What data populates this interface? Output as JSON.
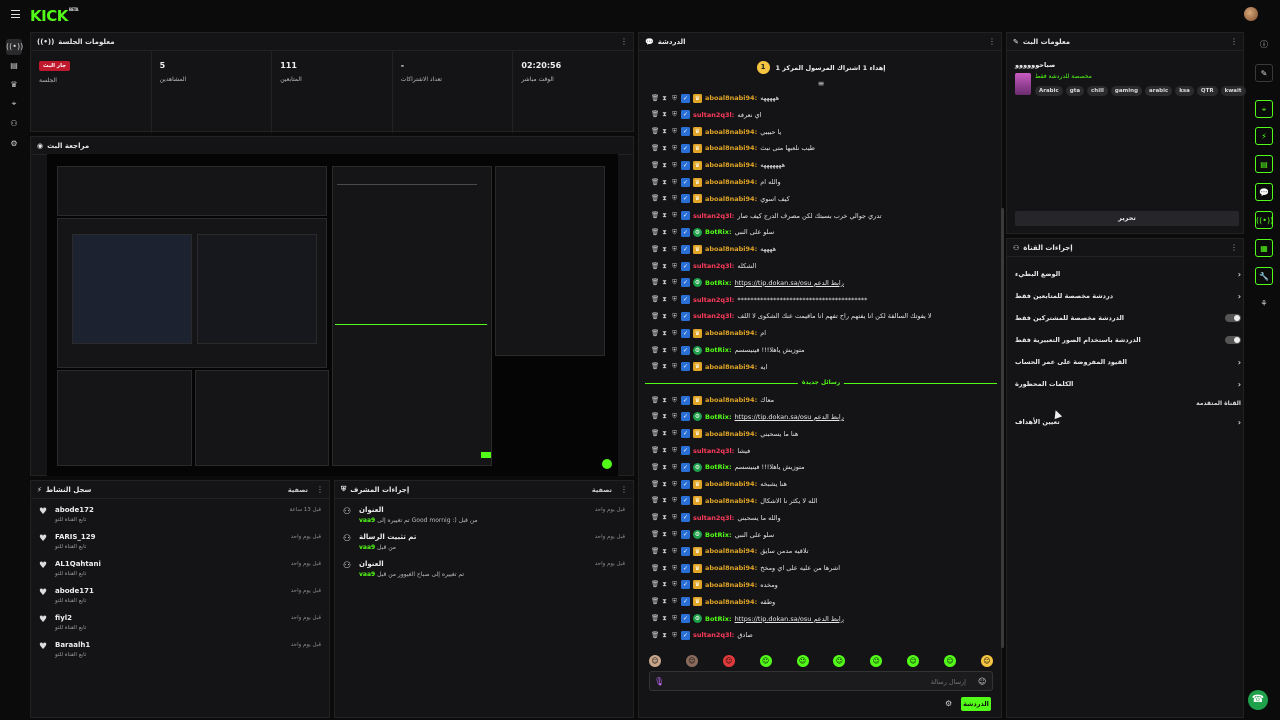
{
  "header": {
    "logo": "KICK",
    "logo_sup": "BETA"
  },
  "colors": {
    "brand": "#53fc18",
    "live": "#c0182c",
    "panel": "#141416"
  },
  "session": {
    "title": "معلومات الجلسة",
    "live_badge": "جار البث",
    "session_label": "الجلسة",
    "viewers_value": "5",
    "viewers_label": "المشاهدين",
    "followers_value": "111",
    "followers_label": "المتابعين",
    "subs_value": "-",
    "subs_label": "تعداد الاشتراكات",
    "time_value": "02:20:56",
    "time_label": "الوقت مباشر"
  },
  "preview": {
    "title": "مراجعة البث"
  },
  "activity": {
    "title": "سجل النشاط",
    "filter": "تصفية",
    "items": [
      {
        "name": "abode172",
        "sub": "تابع القناة للتو",
        "time": "قبل 13 ساعة"
      },
      {
        "name": "FARIS_129",
        "sub": "تابع القناة للتو",
        "time": "قبل يوم واحد"
      },
      {
        "name": "AL1Qahtani",
        "sub": "تابع القناة للتو",
        "time": "قبل يوم واحد"
      },
      {
        "name": "abode171",
        "sub": "تابع القناة للتو",
        "time": "قبل يوم واحد"
      },
      {
        "name": "fiyl2",
        "sub": "تابع القناة للتو",
        "time": "قبل يوم واحد"
      },
      {
        "name": "Baraalh1",
        "sub": "تابع القناة للتو",
        "time": "قبل يوم واحد"
      }
    ]
  },
  "mod": {
    "title": "إجراءات المشرف",
    "filter": "تصفية",
    "items": [
      {
        "name": "العنوان",
        "pre": "vaa9",
        "text": "تم تغييره إلى Good mornig :) من قبل",
        "time": "قبل يوم واحد"
      },
      {
        "name": "تم تثبيت الرسالة",
        "pre": "vaa9",
        "text": "من قبل",
        "time": "قبل يوم واحد"
      },
      {
        "name": "العنوان",
        "pre": "vaa9",
        "text": "تم تغييره إلى صباح الغيوور من قبل",
        "time": "قبل يوم واحد"
      }
    ]
  },
  "chat": {
    "title": "الدردشة",
    "pinned_num": "1",
    "pinned_text": "إهداء 1 اشتراك المرسول المركز 1",
    "messages": [
      {
        "user": "aboal8nabi94:",
        "text": "هههههه",
        "color": "#e0a526",
        "badge": "gold"
      },
      {
        "user": "sultan2q3l:",
        "text": "اي نعرفه",
        "color": "#ff3b5c",
        "badge": "none"
      },
      {
        "user": "aboal8nabi94:",
        "text": "يا حبيبي",
        "color": "#e0a526",
        "badge": "gold"
      },
      {
        "user": "aboal8nabi94:",
        "text": "طيب نلعبها متى نبث",
        "color": "#e0a526",
        "badge": "gold"
      },
      {
        "user": "aboal8nabi94:",
        "text": "هههههههه",
        "color": "#e0a526",
        "badge": "gold"
      },
      {
        "user": "aboal8nabi94:",
        "text": "والله ام",
        "color": "#e0a526",
        "badge": "gold"
      },
      {
        "user": "aboal8nabi94:",
        "text": "كيف اسوي",
        "color": "#e0a526",
        "badge": "gold"
      },
      {
        "user": "sultan2q3l:",
        "text": "تدري جوالي خرب بسبتك لكن مصرف الدرج كيف صار",
        "color": "#ff3b5c",
        "badge": "none"
      },
      {
        "user": "BotRix:",
        "text": "سلو على النبي",
        "color": "#53fc18",
        "badge": "green"
      },
      {
        "user": "aboal8nabi94:",
        "text": "ههههه",
        "color": "#e0a526",
        "badge": "gold"
      },
      {
        "user": "sultan2q3l:",
        "text": "الشكله",
        "color": "#ff3b5c",
        "badge": "none"
      },
      {
        "user": "BotRix:",
        "text": "https://tip.dokan.sa/osu رابط الدعم",
        "color": "#53fc18",
        "badge": "green",
        "link": true
      },
      {
        "user": "sultan2q3l:",
        "text": "****************************************",
        "color": "#ff3b5c",
        "badge": "none"
      },
      {
        "user": "sultan2q3l:",
        "text": "لا يفوتك السالفة لكن انا يفتهم راح تفهم انا ماقيمت عنك الشكوى لا اللف",
        "color": "#ff3b5c",
        "badge": "none"
      },
      {
        "user": "aboal8nabi94:",
        "text": "ام",
        "color": "#e0a526",
        "badge": "gold"
      },
      {
        "user": "BotRix:",
        "text": "متوزيش ياهلا!!! فينيسسم",
        "color": "#53fc18",
        "badge": "green"
      },
      {
        "user": "aboal8nabi94:",
        "text": "ايه",
        "color": "#e0a526",
        "badge": "gold"
      }
    ],
    "divider": "رسائل جديدة",
    "messages2": [
      {
        "user": "aboal8nabi94:",
        "text": "معاك",
        "color": "#e0a526",
        "badge": "gold"
      },
      {
        "user": "BotRix:",
        "text": "https://tip.dokan.sa/osu رابط الدعم",
        "color": "#53fc18",
        "badge": "green",
        "link": true
      },
      {
        "user": "aboal8nabi94:",
        "text": "هنا ما يسحبني",
        "color": "#e0a526",
        "badge": "gold"
      },
      {
        "user": "sultan2q3l:",
        "text": "فيشا",
        "color": "#ff3b5c",
        "badge": "none"
      },
      {
        "user": "BotRix:",
        "text": "متوزيش ياهلا!!! فينيسسم",
        "color": "#53fc18",
        "badge": "green"
      },
      {
        "user": "aboal8nabi94:",
        "text": "هنا يشبخه",
        "color": "#e0a526",
        "badge": "gold"
      },
      {
        "user": "aboal8nabi94:",
        "text": "الله لا يكثر نا الاشكال",
        "color": "#e0a526",
        "badge": "gold"
      },
      {
        "user": "sultan2q3l:",
        "text": "والله ما يسحبني",
        "color": "#ff3b5c",
        "badge": "none"
      },
      {
        "user": "BotRix:",
        "text": "سلو على النبي",
        "color": "#53fc18",
        "badge": "green"
      },
      {
        "user": "aboal8nabi94:",
        "text": "تلاقيه مدمن سايق",
        "color": "#e0a526",
        "badge": "gold"
      },
      {
        "user": "aboal8nabi94:",
        "text": "اشرها من عليه على اي ومخخ",
        "color": "#e0a526",
        "badge": "gold"
      },
      {
        "user": "aboal8nabi94:",
        "text": "ومخده",
        "color": "#e0a526",
        "badge": "gold"
      },
      {
        "user": "aboal8nabi94:",
        "text": "وطقه",
        "color": "#e0a526",
        "badge": "gold"
      },
      {
        "user": "BotRix:",
        "text": "https://tip.dokan.sa/osu رابط الدعم",
        "color": "#53fc18",
        "badge": "green",
        "link": true
      },
      {
        "user": "sultan2q3l:",
        "text": "صادق",
        "color": "#ff3b5c",
        "badge": "none"
      }
    ],
    "input_placeholder": "إرسال رسالة",
    "send_label": "الدردشة"
  },
  "stream_info": {
    "title": "معلومات البث",
    "stream_title": "صباحوووووو",
    "category": "مخصصة للدردشة فقط",
    "tags": [
      "Arabic",
      "gta",
      "chill",
      "gaming",
      "arabic",
      "ksa",
      "QTR",
      "kwait"
    ],
    "edit_label": "تحرير"
  },
  "channel_actions": {
    "title": "إجراءات القناة",
    "slow_mode": "الوضع البطيء",
    "followers_only": "دردشة مخصصة للمتابعين فقط",
    "subs_only": "الدردشة مخصصة للمشتركين فقط",
    "emotes_only": "الدردشة باستخدام الصور التعبيرية فقط",
    "account_age": "القيود المفروضة على عمر الحساب",
    "banned_words": "الكلمات المحظورة",
    "advanced": "القناة المتقدمة",
    "goals": "تعيين الأهداف"
  }
}
